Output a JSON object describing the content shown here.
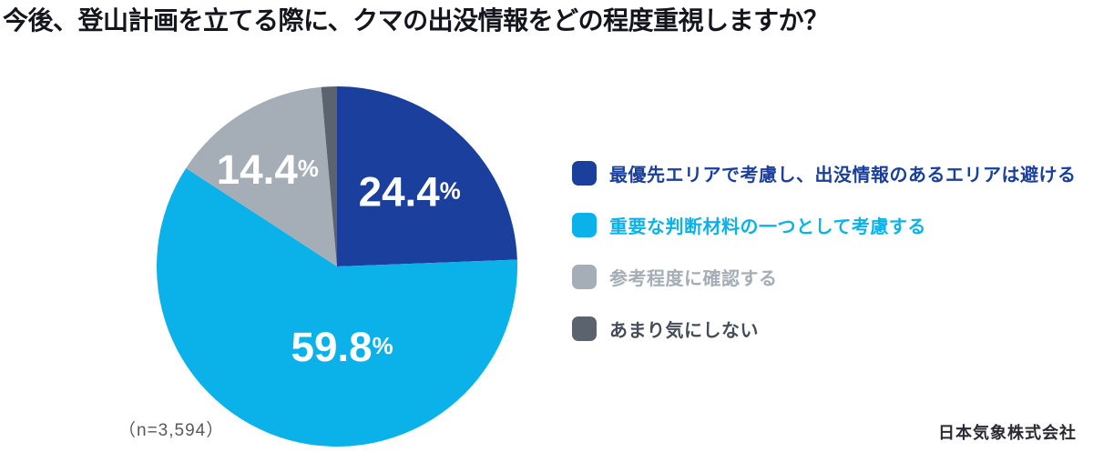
{
  "title": "今後、登山計画を立てる際に、クマの出没情報をどの程度重視しますか？",
  "footnote": "（n=3,594）",
  "source": "日本気象株式会社",
  "chart_data": {
    "type": "pie",
    "title": "今後、登山計画を立てる際に、クマの出没情報をどの程度重視しますか？",
    "sample_size_label": "（n=3,594）",
    "legend_position": "right",
    "start_angle_deg": 0,
    "direction": "clockwise",
    "segments": [
      {
        "label": "最優先エリアで考慮し、出没情報のあるエリアは避ける",
        "value": 24.4,
        "display_value": "24.4",
        "unit": "%",
        "color": "#1a3f9d",
        "text_color": "#1a3f9d",
        "show_label": true,
        "label_r": 0.58,
        "label_dx": 0,
        "label_dy": 0
      },
      {
        "label": "重要な判断材料の一つとして考慮する",
        "value": 59.8,
        "display_value": "59.8",
        "unit": "%",
        "color": "#0ab2e9",
        "text_color": "#0ab2e9",
        "show_label": true,
        "label_r": 0.46,
        "label_dx": 30,
        "label_dy": 0
      },
      {
        "label": "参考程度に確認する",
        "value": 14.4,
        "display_value": "14.4",
        "unit": "%",
        "color": "#a5adb6",
        "text_color": "#a5adb6",
        "show_label": true,
        "label_r": 0.67,
        "label_dx": -8,
        "label_dy": 7
      },
      {
        "label": "あまり気にしない",
        "value": 1.4,
        "display_value": "",
        "unit": "%",
        "color": "#5a636e",
        "text_color": "#454e58",
        "show_label": false,
        "label_r": 0,
        "label_dx": 0,
        "label_dy": 0
      }
    ]
  }
}
